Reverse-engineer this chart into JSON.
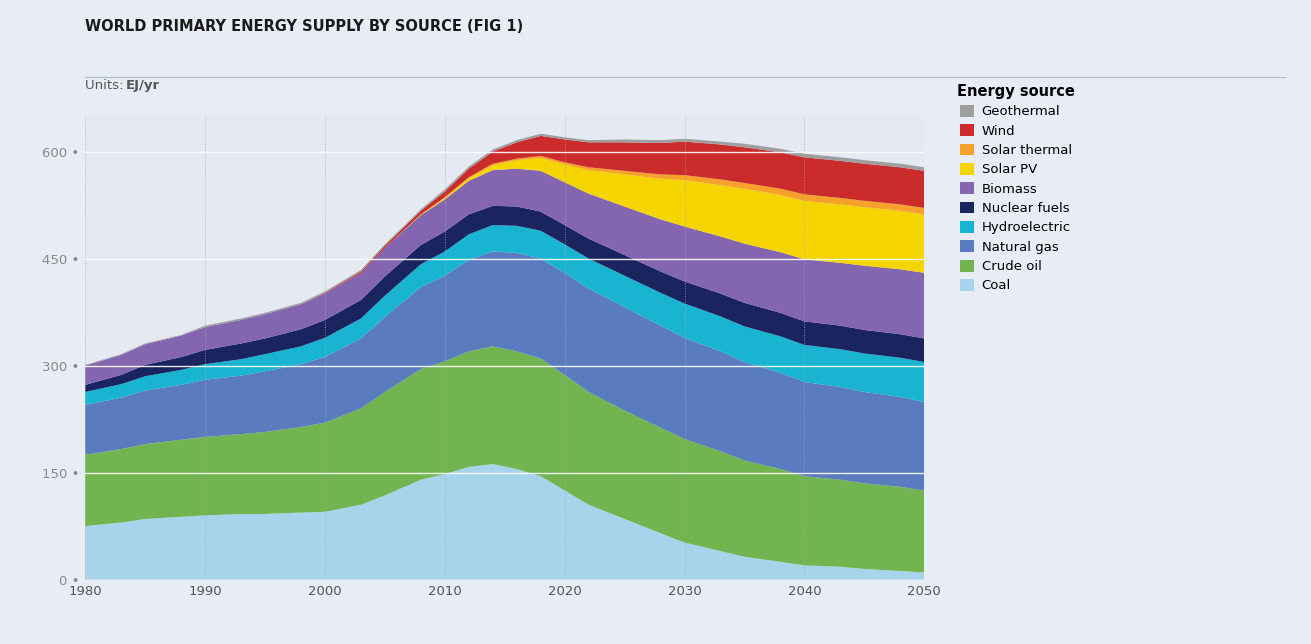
{
  "title": "WORLD PRIMARY ENERGY SUPPLY BY SOURCE (FIG 1)",
  "units_label": "Units: ​EJ/yr",
  "units_bold": "EJ/yr",
  "legend_title": "Energy source",
  "background_color": "#e8edf5",
  "plot_bg_color": "#e4e9f2",
  "years": [
    1980,
    1983,
    1985,
    1988,
    1990,
    1993,
    1995,
    1998,
    2000,
    2003,
    2005,
    2008,
    2010,
    2012,
    2014,
    2016,
    2018,
    2020,
    2022,
    2025,
    2028,
    2030,
    2033,
    2035,
    2038,
    2040,
    2043,
    2045,
    2048,
    2050
  ],
  "sources": [
    "Coal",
    "Crude oil",
    "Natural gas",
    "Hydroelectric",
    "Nuclear fuels",
    "Biomass",
    "Solar PV",
    "Solar thermal",
    "Wind",
    "Geothermal"
  ],
  "colors": [
    "#a8d4eb",
    "#72b550",
    "#5b7bbf",
    "#19b4d1",
    "#1a2560",
    "#8465b0",
    "#f5d400",
    "#f5a12a",
    "#cc2b2b",
    "#9e9e9e"
  ],
  "data": {
    "Coal": [
      75,
      80,
      85,
      88,
      90,
      92,
      92,
      94,
      95,
      105,
      118,
      140,
      148,
      158,
      162,
      155,
      145,
      125,
      105,
      85,
      65,
      52,
      40,
      32,
      25,
      20,
      18,
      15,
      12,
      10
    ],
    "Crude oil": [
      100,
      103,
      105,
      108,
      110,
      112,
      115,
      120,
      125,
      135,
      145,
      155,
      158,
      162,
      165,
      165,
      165,
      162,
      158,
      152,
      148,
      145,
      140,
      135,
      130,
      125,
      122,
      120,
      118,
      115
    ],
    "Natural gas": [
      70,
      72,
      75,
      77,
      80,
      82,
      85,
      88,
      92,
      98,
      105,
      115,
      120,
      128,
      133,
      138,
      140,
      143,
      145,
      145,
      143,
      142,
      140,
      138,
      135,
      132,
      130,
      128,
      126,
      124
    ],
    "Hydroelectric": [
      18,
      19,
      20,
      21,
      22,
      23,
      24,
      25,
      27,
      28,
      30,
      32,
      34,
      36,
      37,
      38,
      39,
      40,
      42,
      44,
      46,
      48,
      49,
      50,
      51,
      52,
      53,
      54,
      55,
      56
    ],
    "Nuclear fuels": [
      10,
      13,
      16,
      18,
      20,
      22,
      22,
      24,
      25,
      26,
      27,
      27,
      28,
      28,
      27,
      27,
      27,
      27,
      28,
      29,
      30,
      31,
      32,
      33,
      33,
      33,
      33,
      33,
      33,
      33
    ],
    "Biomass": [
      27,
      28,
      29,
      30,
      32,
      33,
      34,
      35,
      37,
      38,
      40,
      42,
      45,
      47,
      50,
      53,
      57,
      60,
      63,
      68,
      73,
      77,
      80,
      83,
      85,
      87,
      88,
      90,
      91,
      92
    ],
    "Solar PV": [
      0,
      0,
      0,
      0,
      0,
      0,
      0,
      0,
      0,
      0,
      0,
      1,
      2,
      4,
      7,
      12,
      18,
      25,
      33,
      45,
      57,
      65,
      72,
      77,
      80,
      82,
      82,
      82,
      82,
      82
    ],
    "Solar thermal": [
      0,
      0,
      0,
      0,
      0,
      0,
      0,
      0,
      0,
      0,
      0,
      0,
      1,
      1,
      2,
      2,
      3,
      3,
      4,
      5,
      6,
      7,
      8,
      8,
      9,
      9,
      9,
      9,
      9,
      9
    ],
    "Wind": [
      0,
      0,
      0,
      0,
      0,
      0,
      0,
      0,
      1,
      2,
      3,
      5,
      8,
      12,
      17,
      23,
      28,
      32,
      35,
      40,
      44,
      47,
      49,
      50,
      51,
      52,
      52,
      52,
      52,
      52
    ],
    "Geothermal": [
      1,
      1,
      1,
      1,
      2,
      2,
      2,
      2,
      2,
      2,
      2,
      2,
      3,
      3,
      3,
      3,
      3,
      3,
      3,
      4,
      4,
      4,
      4,
      5,
      5,
      5,
      5,
      5,
      5,
      5
    ]
  },
  "ylim": [
    0,
    650
  ],
  "yticks": [
    0,
    150,
    300,
    450,
    600
  ],
  "xlim": [
    1980,
    2050
  ],
  "xticks": [
    1980,
    1990,
    2000,
    2010,
    2020,
    2030,
    2040,
    2050
  ]
}
